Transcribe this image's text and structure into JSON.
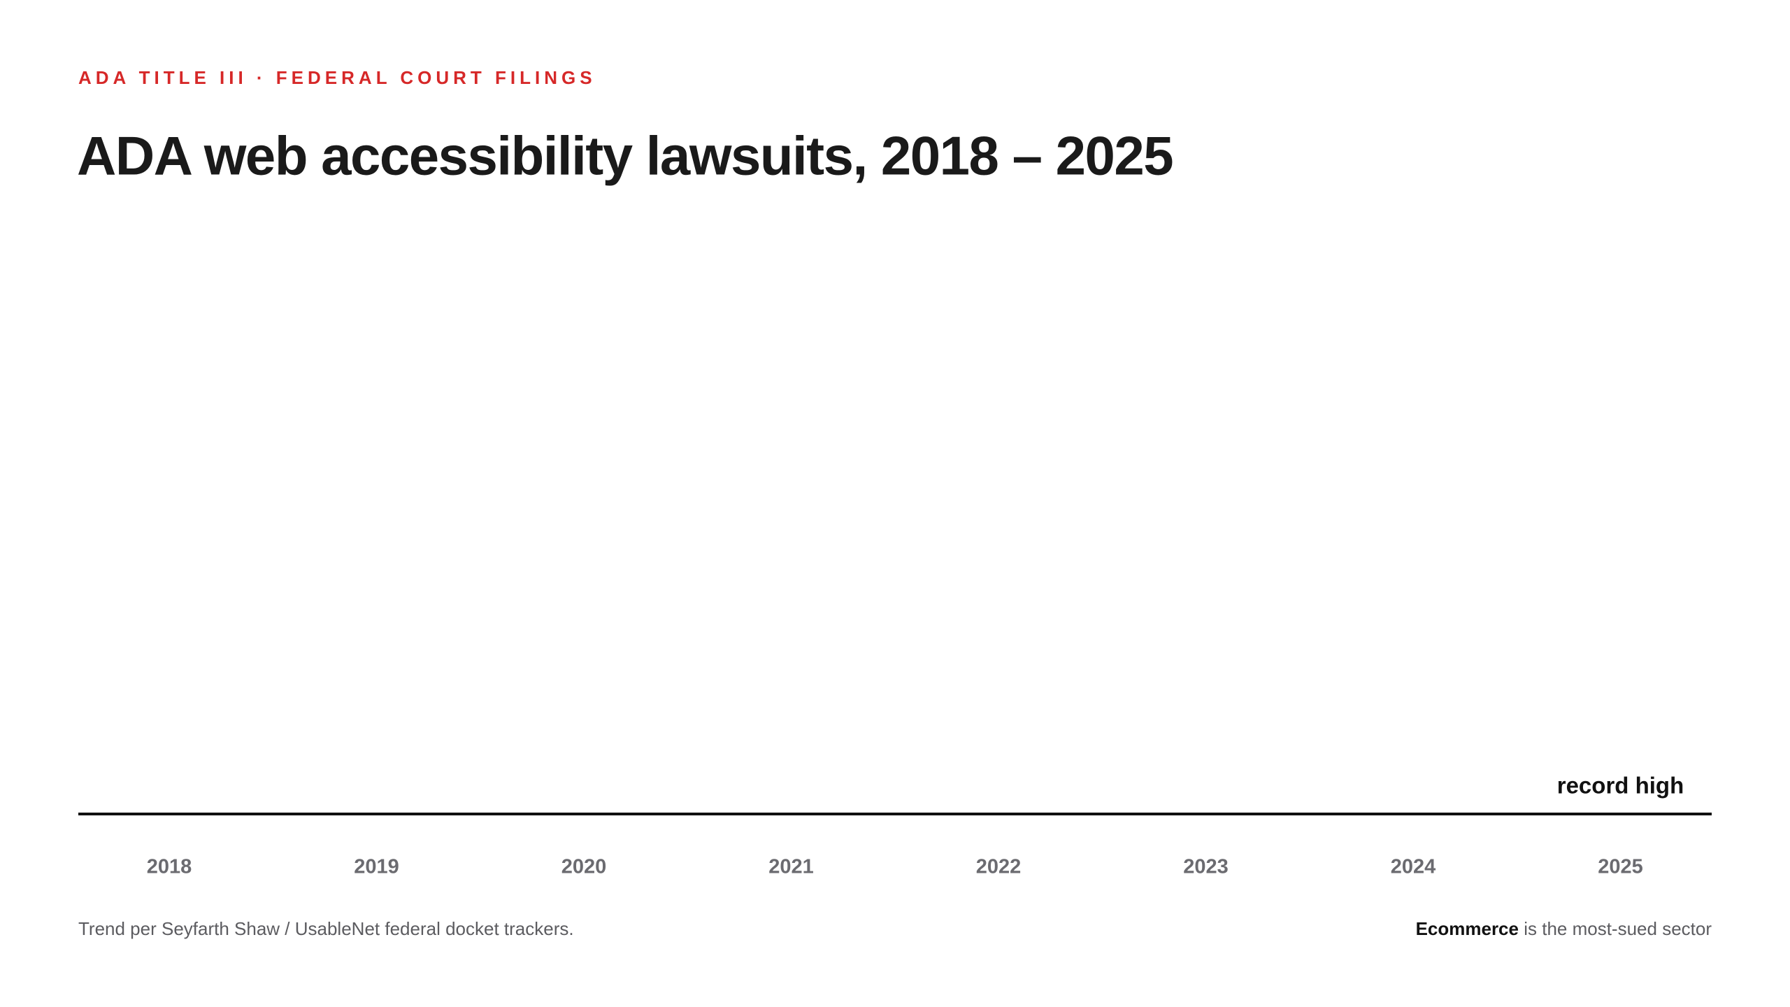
{
  "chart_data": {
    "type": "bar",
    "kicker": "ADA TITLE III · FEDERAL COURT FILINGS",
    "title": "ADA web accessibility lawsuits, 2018 – 2025",
    "categories": [
      "2018",
      "2019",
      "2020",
      "2021",
      "2022",
      "2023",
      "2024",
      "2025"
    ],
    "annotation": "record high",
    "source": "Trend per Seyfarth Shaw / UsableNet federal docket trackers.",
    "note": {
      "strong": "Ecommerce",
      "rest": "is the most-sued sector"
    }
  }
}
